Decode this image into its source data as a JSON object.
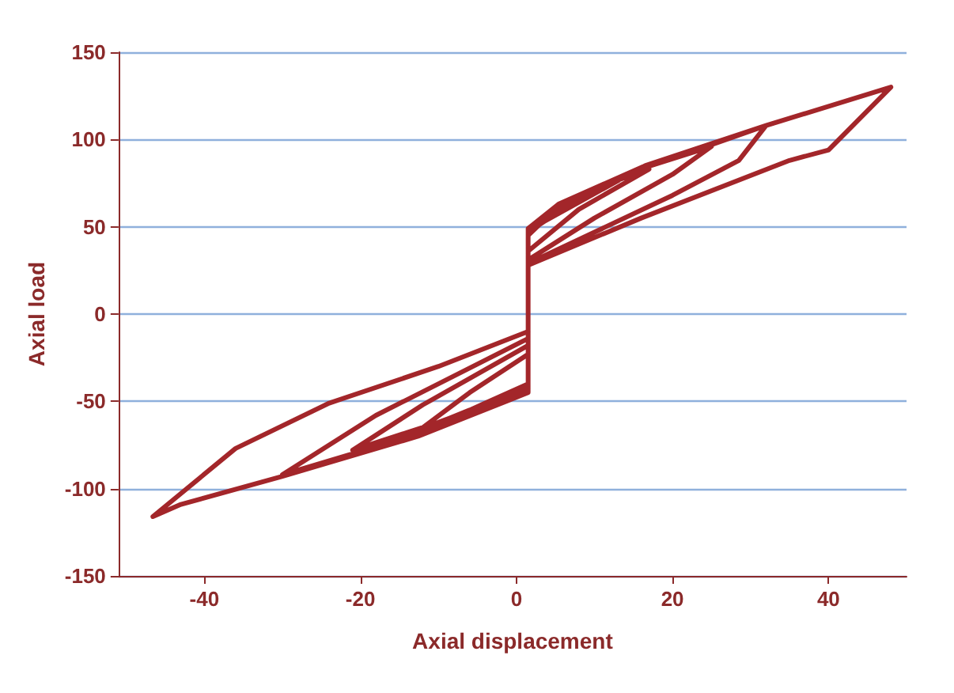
{
  "chart_data": {
    "type": "line",
    "xlabel": "Axial displacement",
    "ylabel": "Axial load",
    "xlim": [
      -51,
      50
    ],
    "xticks": [
      -40,
      -20,
      0,
      20,
      40
    ],
    "ylim": [
      -150,
      150
    ],
    "yticks": [
      -150,
      -100,
      -50,
      0,
      50,
      100,
      150
    ],
    "grid": "y",
    "marker": "none",
    "line_style": "solid",
    "series": [
      {
        "color": "#a3262a",
        "x": [
          1.5,
          1.5,
          5,
          10,
          17,
          8,
          1.5,
          1.5,
          -6,
          -12.6,
          -6,
          1.5,
          1.5,
          8,
          16.5,
          25,
          20,
          10,
          1.5,
          1.5,
          -10,
          -21,
          -12,
          1.5,
          1.5,
          16.5,
          25,
          32,
          28.5,
          20,
          1.5,
          1.5,
          -15,
          -30,
          -18,
          1.5,
          1.5,
          5.4,
          16.5,
          32,
          48,
          40,
          35,
          16,
          1.5,
          1.5,
          -12.6,
          -30,
          -43,
          -46.6,
          -36,
          -24,
          -10,
          1.5
        ],
        "values": [
          -12,
          45,
          60,
          72,
          83,
          60,
          36,
          -40,
          -55,
          -67,
          -45,
          -23,
          47,
          66,
          84,
          96,
          80,
          55,
          31,
          -43,
          -62,
          -78,
          -52,
          -18,
          48,
          85,
          97,
          108,
          88,
          68,
          29,
          -44,
          -72,
          -92,
          -58,
          -14,
          49,
          63,
          85,
          108,
          130,
          94,
          88,
          55,
          28,
          -45,
          -70,
          -93,
          -109,
          -116,
          -77,
          -51,
          -30,
          -10
        ]
      }
    ]
  }
}
